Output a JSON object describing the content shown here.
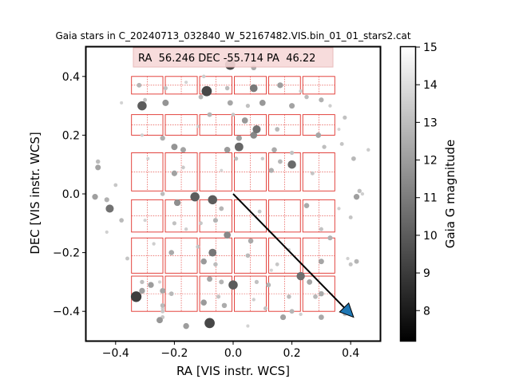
{
  "chart_data": {
    "type": "scatter",
    "title": "Gaia stars in C_20240713_032840_W_52167482.VIS.bin_01_01_stars2.cat",
    "xlabel": "RA [VIS instr. WCS]",
    "ylabel": "DEC [VIS instr. WCS]",
    "xlim": [
      -0.5,
      0.5
    ],
    "ylim": [
      -0.5,
      0.5
    ],
    "xticks": [
      -0.4,
      -0.2,
      0.0,
      0.2,
      0.4
    ],
    "yticks": [
      -0.4,
      -0.2,
      0.0,
      0.2,
      0.4
    ],
    "xtick_labels": [
      "−0.4",
      "−0.2",
      "0.0",
      "0.2",
      "0.4"
    ],
    "ytick_labels": [
      "−0.4",
      "−0.2",
      "0.0",
      "0.2",
      "0.4"
    ],
    "info_box": "RA  56.246 DEC -55.714 PA  46.22",
    "colorbar": {
      "label": "Gaia G magnitude",
      "range": [
        7.2,
        15
      ],
      "ticks": [
        8,
        9,
        10,
        11,
        12,
        13,
        14,
        15
      ],
      "tick_labels": [
        "8",
        "9",
        "10",
        "11",
        "12",
        "13",
        "14",
        "15"
      ]
    },
    "detector_grid": {
      "ra_edges": [
        -0.35,
        -0.235,
        -0.118,
        0.0,
        0.117,
        0.233,
        0.35
      ],
      "dec_rows": [
        [
          0.34,
          0.4
        ],
        [
          0.2,
          0.27
        ],
        [
          0.01,
          0.14
        ],
        [
          -0.13,
          -0.02
        ],
        [
          -0.27,
          -0.15
        ],
        [
          -0.4,
          -0.28
        ]
      ],
      "color": "#e0302a"
    },
    "arrow": {
      "from": [
        0.0,
        0.0
      ],
      "to": [
        0.41,
        -0.42
      ],
      "head_color": "#1f77b4"
    },
    "points": [
      {
        "x": -0.01,
        "y": 0.44,
        "mag": 8.5
      },
      {
        "x": -0.1,
        "y": 0.4,
        "mag": 14.5
      },
      {
        "x": 0.07,
        "y": 0.43,
        "mag": 13.0
      },
      {
        "x": -0.16,
        "y": 0.38,
        "mag": 14.8
      },
      {
        "x": -0.23,
        "y": 0.36,
        "mag": 14.0
      },
      {
        "x": -0.32,
        "y": 0.37,
        "mag": 13.5
      },
      {
        "x": -0.09,
        "y": 0.35,
        "mag": 8.6
      },
      {
        "x": 0.07,
        "y": 0.36,
        "mag": 10.8
      },
      {
        "x": -0.02,
        "y": 0.36,
        "mag": 13.8
      },
      {
        "x": 0.16,
        "y": 0.37,
        "mag": 12.5
      },
      {
        "x": 0.23,
        "y": 0.35,
        "mag": 14.5
      },
      {
        "x": 0.25,
        "y": 0.33,
        "mag": 13.8
      },
      {
        "x": -0.31,
        "y": 0.3,
        "mag": 9.5
      },
      {
        "x": -0.3,
        "y": 0.32,
        "mag": 14.2
      },
      {
        "x": -0.23,
        "y": 0.31,
        "mag": 12.0
      },
      {
        "x": -0.38,
        "y": 0.31,
        "mag": 14.8
      },
      {
        "x": -0.11,
        "y": 0.33,
        "mag": 13.6
      },
      {
        "x": -0.01,
        "y": 0.31,
        "mag": 12.8
      },
      {
        "x": 0.1,
        "y": 0.31,
        "mag": 12.2
      },
      {
        "x": 0.05,
        "y": 0.3,
        "mag": 14.0
      },
      {
        "x": 0.2,
        "y": 0.3,
        "mag": 12.7
      },
      {
        "x": 0.3,
        "y": 0.32,
        "mag": 13.3
      },
      {
        "x": 0.33,
        "y": 0.3,
        "mag": 14.6
      },
      {
        "x": 0.38,
        "y": 0.26,
        "mag": 14.0
      },
      {
        "x": 0.36,
        "y": 0.22,
        "mag": 14.9
      },
      {
        "x": -0.08,
        "y": 0.27,
        "mag": 13.5
      },
      {
        "x": 0.0,
        "y": 0.27,
        "mag": 14.3
      },
      {
        "x": 0.04,
        "y": 0.25,
        "mag": 12.2
      },
      {
        "x": 0.08,
        "y": 0.22,
        "mag": 10.5
      },
      {
        "x": 0.07,
        "y": 0.2,
        "mag": 11.5
      },
      {
        "x": 0.02,
        "y": 0.19,
        "mag": 12.6
      },
      {
        "x": -0.12,
        "y": 0.23,
        "mag": 14.8
      },
      {
        "x": -0.24,
        "y": 0.19,
        "mag": 13.2
      },
      {
        "x": -0.2,
        "y": 0.16,
        "mag": 12.0
      },
      {
        "x": -0.31,
        "y": 0.2,
        "mag": 14.7
      },
      {
        "x": 0.15,
        "y": 0.22,
        "mag": 13.6
      },
      {
        "x": 0.31,
        "y": 0.16,
        "mag": 13.9
      },
      {
        "x": 0.37,
        "y": 0.17,
        "mag": 14.2
      },
      {
        "x": 0.29,
        "y": 0.2,
        "mag": 12.8
      },
      {
        "x": -0.02,
        "y": 0.15,
        "mag": 12.3
      },
      {
        "x": 0.02,
        "y": 0.16,
        "mag": 10.0
      },
      {
        "x": 0.14,
        "y": 0.15,
        "mag": 13.0
      },
      {
        "x": 0.1,
        "y": 0.12,
        "mag": 14.5
      },
      {
        "x": 0.2,
        "y": 0.14,
        "mag": 14.0
      },
      {
        "x": 0.16,
        "y": 0.11,
        "mag": 13.6
      },
      {
        "x": 0.2,
        "y": 0.1,
        "mag": 10.2
      },
      {
        "x": -0.17,
        "y": 0.15,
        "mag": 12.7
      },
      {
        "x": -0.29,
        "y": 0.12,
        "mag": 14.8
      },
      {
        "x": -0.46,
        "y": 0.11,
        "mag": 13.8
      },
      {
        "x": -0.46,
        "y": 0.09,
        "mag": 12.7
      },
      {
        "x": -0.2,
        "y": 0.07,
        "mag": 12.6
      },
      {
        "x": -0.17,
        "y": 0.09,
        "mag": 14.4
      },
      {
        "x": -0.04,
        "y": 0.08,
        "mag": 14.9
      },
      {
        "x": 0.01,
        "y": 0.12,
        "mag": 14.0
      },
      {
        "x": 0.13,
        "y": 0.08,
        "mag": 13.2
      },
      {
        "x": 0.27,
        "y": 0.07,
        "mag": 14.2
      },
      {
        "x": 0.46,
        "y": 0.15,
        "mag": 14.5
      },
      {
        "x": 0.41,
        "y": 0.12,
        "mag": 13.6
      },
      {
        "x": -0.4,
        "y": 0.03,
        "mag": 14.3
      },
      {
        "x": -0.47,
        "y": -0.01,
        "mag": 12.5
      },
      {
        "x": -0.43,
        "y": -0.02,
        "mag": 13.3
      },
      {
        "x": -0.42,
        "y": -0.05,
        "mag": 10.5
      },
      {
        "x": -0.24,
        "y": 0.0,
        "mag": 13.8
      },
      {
        "x": -0.13,
        "y": -0.01,
        "mag": 9.5
      },
      {
        "x": -0.07,
        "y": -0.02,
        "mag": 9.5
      },
      {
        "x": -0.04,
        "y": -0.05,
        "mag": 13.5
      },
      {
        "x": -0.19,
        "y": -0.03,
        "mag": 11.8
      },
      {
        "x": -0.06,
        "y": -0.09,
        "mag": 13.4
      },
      {
        "x": 0.09,
        "y": -0.06,
        "mag": 14.3
      },
      {
        "x": 0.25,
        "y": -0.04,
        "mag": 13.0
      },
      {
        "x": 0.36,
        "y": -0.05,
        "mag": 14.7
      },
      {
        "x": 0.42,
        "y": -0.01,
        "mag": 12.5
      },
      {
        "x": 0.44,
        "y": 0.0,
        "mag": 14.6
      },
      {
        "x": 0.43,
        "y": 0.01,
        "mag": 13.9
      },
      {
        "x": 0.4,
        "y": -0.08,
        "mag": 14.2
      },
      {
        "x": -0.3,
        "y": -0.09,
        "mag": 14.8
      },
      {
        "x": -0.38,
        "y": -0.09,
        "mag": 13.7
      },
      {
        "x": -0.43,
        "y": -0.13,
        "mag": 14.7
      },
      {
        "x": -0.2,
        "y": -0.1,
        "mag": 14.0
      },
      {
        "x": -0.16,
        "y": -0.12,
        "mag": 14.6
      },
      {
        "x": -0.11,
        "y": -0.1,
        "mag": 14.3
      },
      {
        "x": -0.02,
        "y": -0.14,
        "mag": 11.5
      },
      {
        "x": 0.06,
        "y": -0.16,
        "mag": 13.0
      },
      {
        "x": 0.3,
        "y": -0.12,
        "mag": 14.1
      },
      {
        "x": 0.33,
        "y": -0.15,
        "mag": 13.3
      },
      {
        "x": -0.27,
        "y": -0.17,
        "mag": 14.6
      },
      {
        "x": -0.21,
        "y": -0.2,
        "mag": 13.0
      },
      {
        "x": -0.12,
        "y": -0.18,
        "mag": 14.2
      },
      {
        "x": -0.07,
        "y": -0.2,
        "mag": 10.7
      },
      {
        "x": 0.05,
        "y": -0.21,
        "mag": 13.7
      },
      {
        "x": 0.19,
        "y": -0.19,
        "mag": 14.8
      },
      {
        "x": -0.1,
        "y": -0.23,
        "mag": 12.3
      },
      {
        "x": -0.06,
        "y": -0.24,
        "mag": 13.8
      },
      {
        "x": 0.15,
        "y": -0.24,
        "mag": 14.3
      },
      {
        "x": 0.3,
        "y": -0.23,
        "mag": 12.8
      },
      {
        "x": 0.4,
        "y": -0.24,
        "mag": 14.1
      },
      {
        "x": 0.39,
        "y": -0.22,
        "mag": 14.7
      },
      {
        "x": 0.42,
        "y": -0.23,
        "mag": 13.5
      },
      {
        "x": -0.36,
        "y": -0.22,
        "mag": 14.2
      },
      {
        "x": 0.13,
        "y": -0.26,
        "mag": 14.8
      },
      {
        "x": 0.23,
        "y": -0.28,
        "mag": 10.3
      },
      {
        "x": 0.26,
        "y": -0.3,
        "mag": 12.8
      },
      {
        "x": 0.28,
        "y": -0.35,
        "mag": 13.6
      },
      {
        "x": -0.31,
        "y": -0.3,
        "mag": 13.9
      },
      {
        "x": -0.28,
        "y": -0.31,
        "mag": 12.4
      },
      {
        "x": -0.25,
        "y": -0.3,
        "mag": 14.8
      },
      {
        "x": -0.08,
        "y": -0.29,
        "mag": 12.8
      },
      {
        "x": -0.04,
        "y": -0.3,
        "mag": 13.4
      },
      {
        "x": 0.0,
        "y": -0.31,
        "mag": 9.5
      },
      {
        "x": 0.08,
        "y": -0.3,
        "mag": 14.0
      },
      {
        "x": 0.12,
        "y": -0.31,
        "mag": 13.4
      },
      {
        "x": -0.33,
        "y": -0.35,
        "mag": 8.2
      },
      {
        "x": -0.31,
        "y": -0.33,
        "mag": 12.5
      },
      {
        "x": -0.21,
        "y": -0.34,
        "mag": 13.6
      },
      {
        "x": -0.1,
        "y": -0.37,
        "mag": 12.3
      },
      {
        "x": -0.05,
        "y": -0.35,
        "mag": 14.1
      },
      {
        "x": 0.07,
        "y": -0.36,
        "mag": 14.6
      },
      {
        "x": 0.19,
        "y": -0.35,
        "mag": 13.8
      },
      {
        "x": 0.3,
        "y": -0.34,
        "mag": 13.0
      },
      {
        "x": -0.24,
        "y": -0.39,
        "mag": 14.6
      },
      {
        "x": -0.24,
        "y": -0.42,
        "mag": 14.3
      },
      {
        "x": -0.03,
        "y": -0.38,
        "mag": 13.1
      },
      {
        "x": 0.11,
        "y": -0.39,
        "mag": 14.1
      },
      {
        "x": 0.2,
        "y": -0.4,
        "mag": 13.5
      },
      {
        "x": 0.23,
        "y": -0.41,
        "mag": 14.6
      },
      {
        "x": -0.24,
        "y": -0.4,
        "mag": 14.3
      },
      {
        "x": -0.24,
        "y": -0.38,
        "mag": 13.6
      },
      {
        "x": -0.24,
        "y": -0.33,
        "mag": 12.8
      },
      {
        "x": 0.3,
        "y": -0.42,
        "mag": 12.9
      },
      {
        "x": 0.17,
        "y": -0.42,
        "mag": 12.6
      },
      {
        "x": -0.24,
        "y": -0.4,
        "mag": 14.3
      },
      {
        "x": -0.24,
        "y": -0.42,
        "mag": 14.3
      },
      {
        "x": -0.16,
        "y": -0.45,
        "mag": 12.4
      },
      {
        "x": -0.08,
        "y": -0.44,
        "mag": 8.6
      },
      {
        "x": 0.05,
        "y": -0.45,
        "mag": 14.8
      },
      {
        "x": -0.25,
        "y": -0.43,
        "mag": 12.1
      },
      {
        "x": 0.38,
        "y": -0.41,
        "mag": 14.2
      }
    ]
  }
}
